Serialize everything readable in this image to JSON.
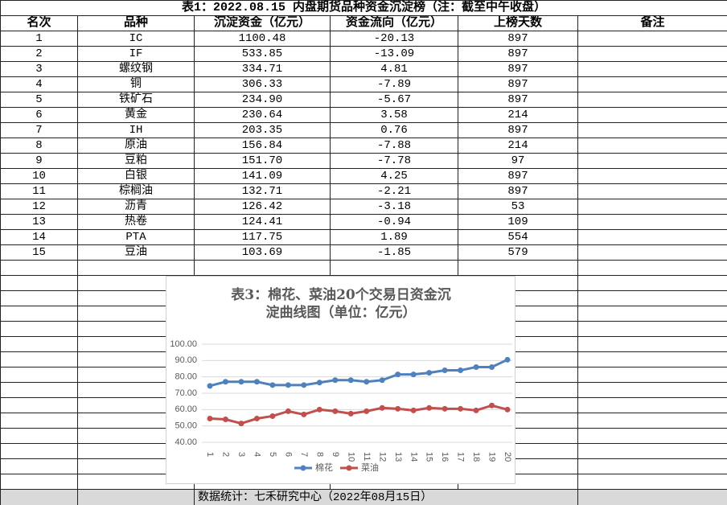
{
  "table": {
    "title": "表1：2022.08.15 内盘期货品种资金沉淀榜（注：截至中午收盘）",
    "header": [
      "名次",
      "品种",
      "沉淀资金（亿元）",
      "资金流向（亿元）",
      "上榜天数",
      "备注"
    ],
    "rows": [
      [
        "1",
        "IC",
        "1100.48",
        "-20.13",
        "897"
      ],
      [
        "2",
        "IF",
        "533.85",
        "-13.09",
        "897"
      ],
      [
        "3",
        "螺纹钢",
        "334.71",
        "4.81",
        "897"
      ],
      [
        "4",
        "铜",
        "306.33",
        "-7.89",
        "897"
      ],
      [
        "5",
        "铁矿石",
        "234.90",
        "-5.67",
        "897"
      ],
      [
        "6",
        "黄金",
        "230.64",
        "3.58",
        "214"
      ],
      [
        "7",
        "IH",
        "203.35",
        "0.76",
        "897"
      ],
      [
        "8",
        "原油",
        "156.84",
        "-7.88",
        "214"
      ],
      [
        "9",
        "豆粕",
        "151.70",
        "-7.78",
        "97"
      ],
      [
        "10",
        "白银",
        "141.09",
        "4.25",
        "897"
      ],
      [
        "11",
        "棕榈油",
        "132.71",
        "-2.21",
        "897"
      ],
      [
        "12",
        "沥青",
        "126.42",
        "-3.18",
        "53"
      ],
      [
        "13",
        "热卷",
        "124.41",
        "-0.94",
        "109"
      ],
      [
        "14",
        "PTA",
        "117.75",
        "1.89",
        "554"
      ],
      [
        "15",
        "豆油",
        "103.69",
        "-1.85",
        "579"
      ]
    ],
    "footer": "数据统计：七禾研究中心（2022年08月15日）"
  },
  "chart_data": {
    "type": "line",
    "title": "表3：棉花、菜油20个交易日资金沉淀曲线图（单位：亿元）",
    "categories": [
      "1",
      "2",
      "3",
      "4",
      "5",
      "6",
      "7",
      "8",
      "9",
      "10",
      "11",
      "12",
      "13",
      "14",
      "15",
      "16",
      "17",
      "18",
      "19",
      "20"
    ],
    "series": [
      {
        "name": "棉花",
        "color": "#4f81bd",
        "values": [
          74.5,
          77,
          77,
          77,
          75,
          75,
          75,
          76.5,
          78,
          78,
          77,
          78,
          81.5,
          81.5,
          82.5,
          84,
          84,
          86,
          86,
          90.5
        ]
      },
      {
        "name": "菜油",
        "color": "#c0504d",
        "values": [
          54.5,
          54,
          51.5,
          54.5,
          56,
          59,
          57,
          60,
          59,
          57.5,
          59,
          61,
          60.5,
          59.5,
          61,
          60.5,
          60.5,
          59.5,
          62.5,
          60
        ]
      }
    ],
    "ylim": [
      40,
      100
    ],
    "yticks": [
      {
        "value": 40,
        "label": "40.00"
      },
      {
        "value": 50,
        "label": "50.00"
      },
      {
        "value": 60,
        "label": "60.00"
      },
      {
        "value": 70,
        "label": "70.00"
      },
      {
        "value": 80,
        "label": "80.00"
      },
      {
        "value": 90,
        "label": "90.00"
      },
      {
        "value": 100,
        "label": "100.00"
      }
    ],
    "grid": true,
    "legend": "bottom"
  }
}
